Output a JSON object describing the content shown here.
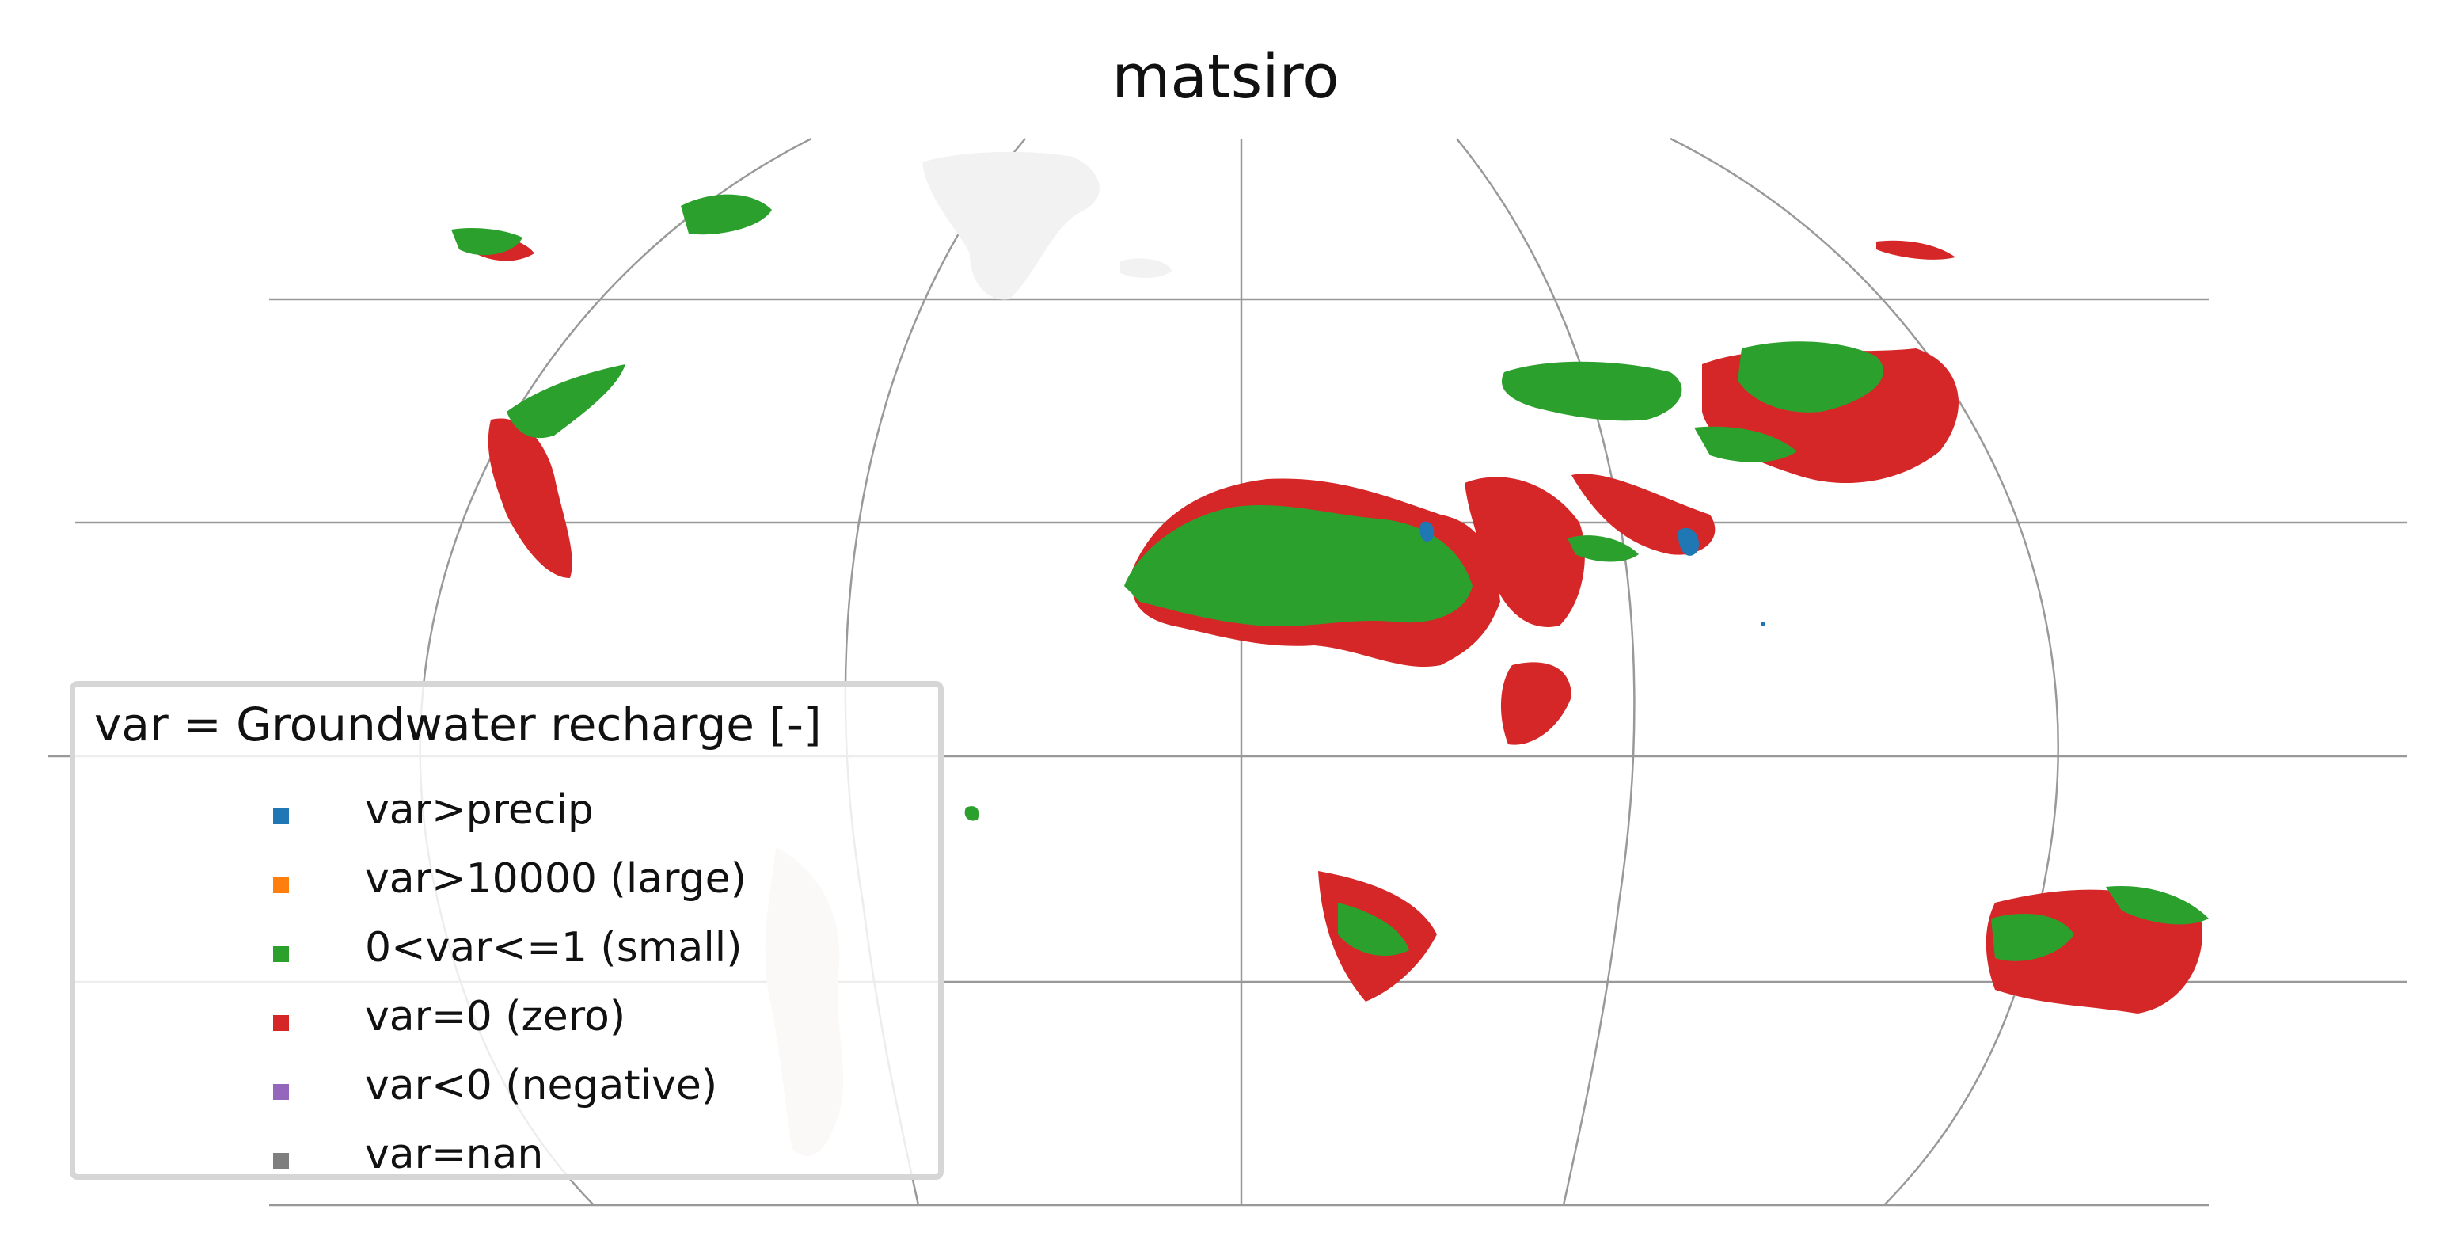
{
  "title": "matsiro",
  "legend": {
    "title": "var = Groundwater recharge [-]",
    "items": [
      {
        "label": "var>precip",
        "color": "#1f77b4"
      },
      {
        "label": "var>10000 (large)",
        "color": "#ff7f0e"
      },
      {
        "label": "0<var<=1 (small)",
        "color": "#2ca02c"
      },
      {
        "label": "var=0 (zero)",
        "color": "#d62728"
      },
      {
        "label": "var<0 (negative)",
        "color": "#9467bd"
      },
      {
        "label": "var=nan",
        "color": "#7f7f7f"
      }
    ]
  },
  "colors": {
    "gridline": "#999999",
    "background_land": "#f2f2f2",
    "small": "#2ca02c",
    "zero": "#d62728",
    "precip": "#1f77b4"
  }
}
